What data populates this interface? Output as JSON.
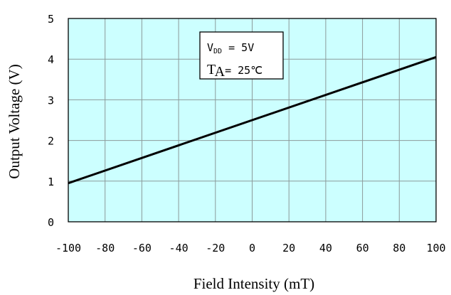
{
  "chart_data": {
    "type": "line",
    "xlabel": "Field Intensity (mT)",
    "ylabel": "Output Voltage (V)",
    "xlim": [
      -100,
      100
    ],
    "ylim": [
      0,
      5
    ],
    "x_ticks": [
      "-100",
      "-80",
      "-60",
      "-40",
      "-20",
      "0",
      "20",
      "40",
      "60",
      "80",
      "100"
    ],
    "y_ticks": [
      "0",
      "1",
      "2",
      "3",
      "4",
      "5"
    ],
    "grid": true,
    "plot_background": "#ccffff",
    "line_color": "#000000",
    "series": [
      {
        "x": [
          -100,
          100
        ],
        "values": [
          0.95,
          4.05
        ]
      }
    ],
    "annotation": {
      "vdd_label": "V",
      "vdd_sub": "DD",
      "vdd_value": " = 5V",
      "ta_label": "T",
      "ta_sub": "A",
      "ta_value": "= 25℃"
    }
  }
}
